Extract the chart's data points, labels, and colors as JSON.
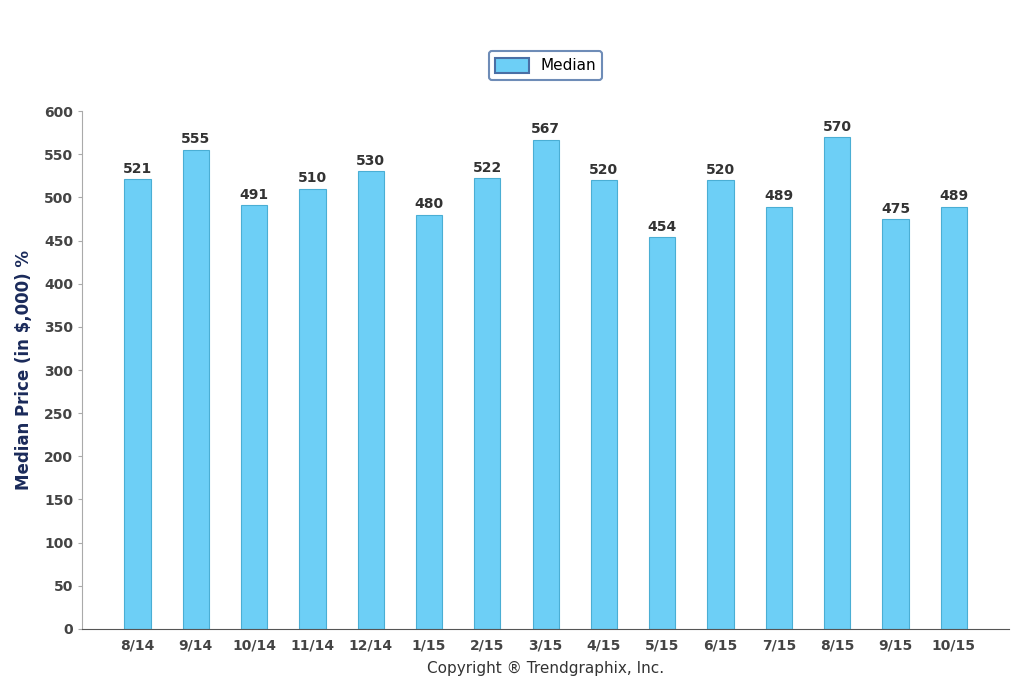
{
  "categories": [
    "8/14",
    "9/14",
    "10/14",
    "11/14",
    "12/14",
    "1/15",
    "2/15",
    "3/15",
    "4/15",
    "5/15",
    "6/15",
    "7/15",
    "8/15",
    "9/15",
    "10/15"
  ],
  "values": [
    521,
    555,
    491,
    510,
    530,
    480,
    522,
    567,
    520,
    454,
    520,
    489,
    570,
    475,
    489
  ],
  "bar_color": "#6DCFF6",
  "bar_edge_color": "#4AAED4",
  "ylabel": "Median Price (in $,000) %",
  "xlabel": "Copyright ® Trendgraphix, Inc.",
  "ylim": [
    0,
    600
  ],
  "yticks": [
    0,
    50,
    100,
    150,
    200,
    250,
    300,
    350,
    400,
    450,
    500,
    550,
    600
  ],
  "legend_label": "Median",
  "legend_edge_color": "#4a6fa5",
  "background_color": "#ffffff",
  "bar_width": 0.45,
  "value_fontsize": 10,
  "axis_label_fontsize": 12,
  "tick_fontsize": 10,
  "legend_fontsize": 11
}
